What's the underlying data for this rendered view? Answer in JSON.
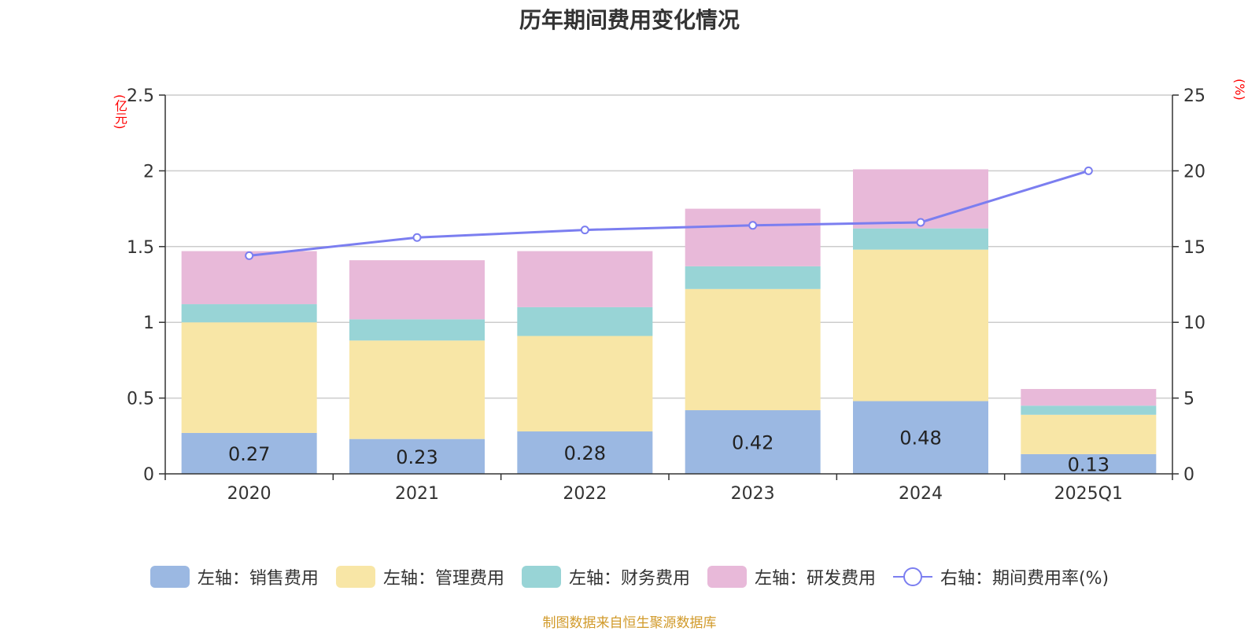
{
  "title": "历年期间费用变化情况",
  "left_unit": "(亿元)",
  "right_unit": "(%)",
  "source": "制图数据来自恒生聚源数据库",
  "chart_data": {
    "type": "bar",
    "stacked": true,
    "categories": [
      "2020",
      "2021",
      "2022",
      "2023",
      "2024",
      "2025Q1"
    ],
    "y_left": {
      "min": 0,
      "max": 2.5,
      "ticks": [
        "0",
        "0.5",
        "1",
        "1.5",
        "2",
        "2.5"
      ]
    },
    "y_right": {
      "min": 0,
      "max": 25,
      "ticks": [
        "0",
        "5",
        "10",
        "15",
        "20",
        "25"
      ]
    },
    "series": [
      {
        "name": "左轴：销售费用",
        "axis": "left",
        "color": "#9bb8e2",
        "values": [
          0.27,
          0.23,
          0.28,
          0.42,
          0.48,
          0.13
        ],
        "labels": [
          "0.27",
          "0.23",
          "0.28",
          "0.42",
          "0.48",
          "0.13"
        ]
      },
      {
        "name": "左轴：管理费用",
        "axis": "left",
        "color": "#f8e6a6",
        "values": [
          0.73,
          0.65,
          0.63,
          0.8,
          1.0,
          0.26
        ]
      },
      {
        "name": "左轴：财务费用",
        "axis": "left",
        "color": "#98d4d6",
        "values": [
          0.12,
          0.14,
          0.19,
          0.15,
          0.14,
          0.06
        ]
      },
      {
        "name": "左轴：研发费用",
        "axis": "left",
        "color": "#e8b9d9",
        "values": [
          0.35,
          0.39,
          0.37,
          0.38,
          0.39,
          0.11
        ]
      }
    ],
    "line": {
      "name": "右轴：期间费用率(%)",
      "axis": "right",
      "color": "#7b7ef0",
      "values": [
        14.4,
        15.6,
        16.1,
        16.4,
        16.6,
        20.0
      ]
    }
  }
}
